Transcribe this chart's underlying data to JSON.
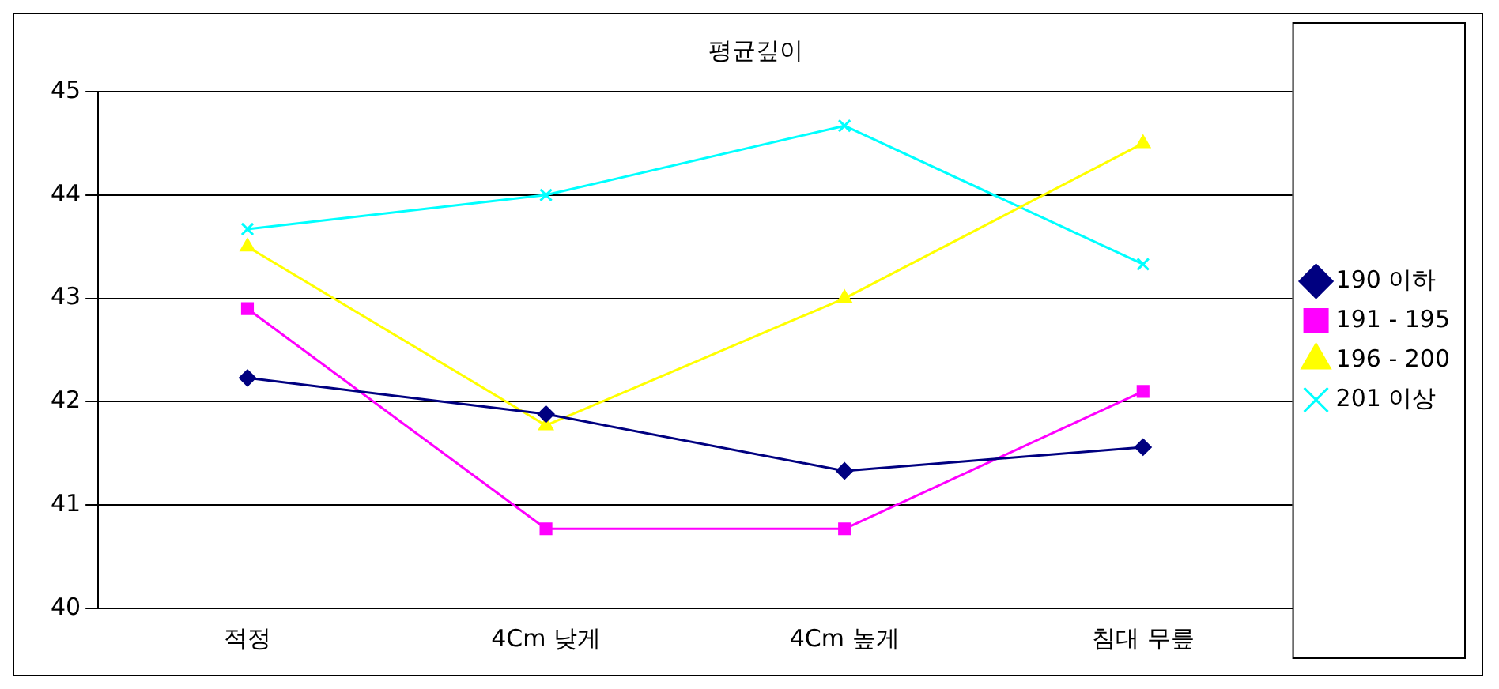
{
  "chart_data": {
    "type": "line",
    "title": "평균깊이",
    "categories": [
      "적정",
      "4Cm 낮게",
      "4Cm 높게",
      "침대 무릎"
    ],
    "series": [
      {
        "name": "190 이하",
        "color": "#000080",
        "marker": "diamond",
        "values": [
          42.23,
          41.88,
          41.33,
          41.56
        ]
      },
      {
        "name": "191 - 195",
        "color": "#ff00ff",
        "marker": "square",
        "values": [
          42.9,
          40.77,
          40.77,
          42.1
        ]
      },
      {
        "name": "196 - 200",
        "color": "#ffff00",
        "marker": "triangle",
        "values": [
          43.5,
          41.77,
          43.0,
          44.5
        ]
      },
      {
        "name": "201 이상",
        "color": "#00ffff",
        "marker": "cross",
        "values": [
          43.67,
          44.0,
          44.67,
          43.33
        ]
      }
    ],
    "ylim": [
      40,
      45
    ],
    "yticks": [
      40,
      41,
      42,
      43,
      44,
      45
    ],
    "grid": "y",
    "legend": "right",
    "line_style": "solid"
  }
}
